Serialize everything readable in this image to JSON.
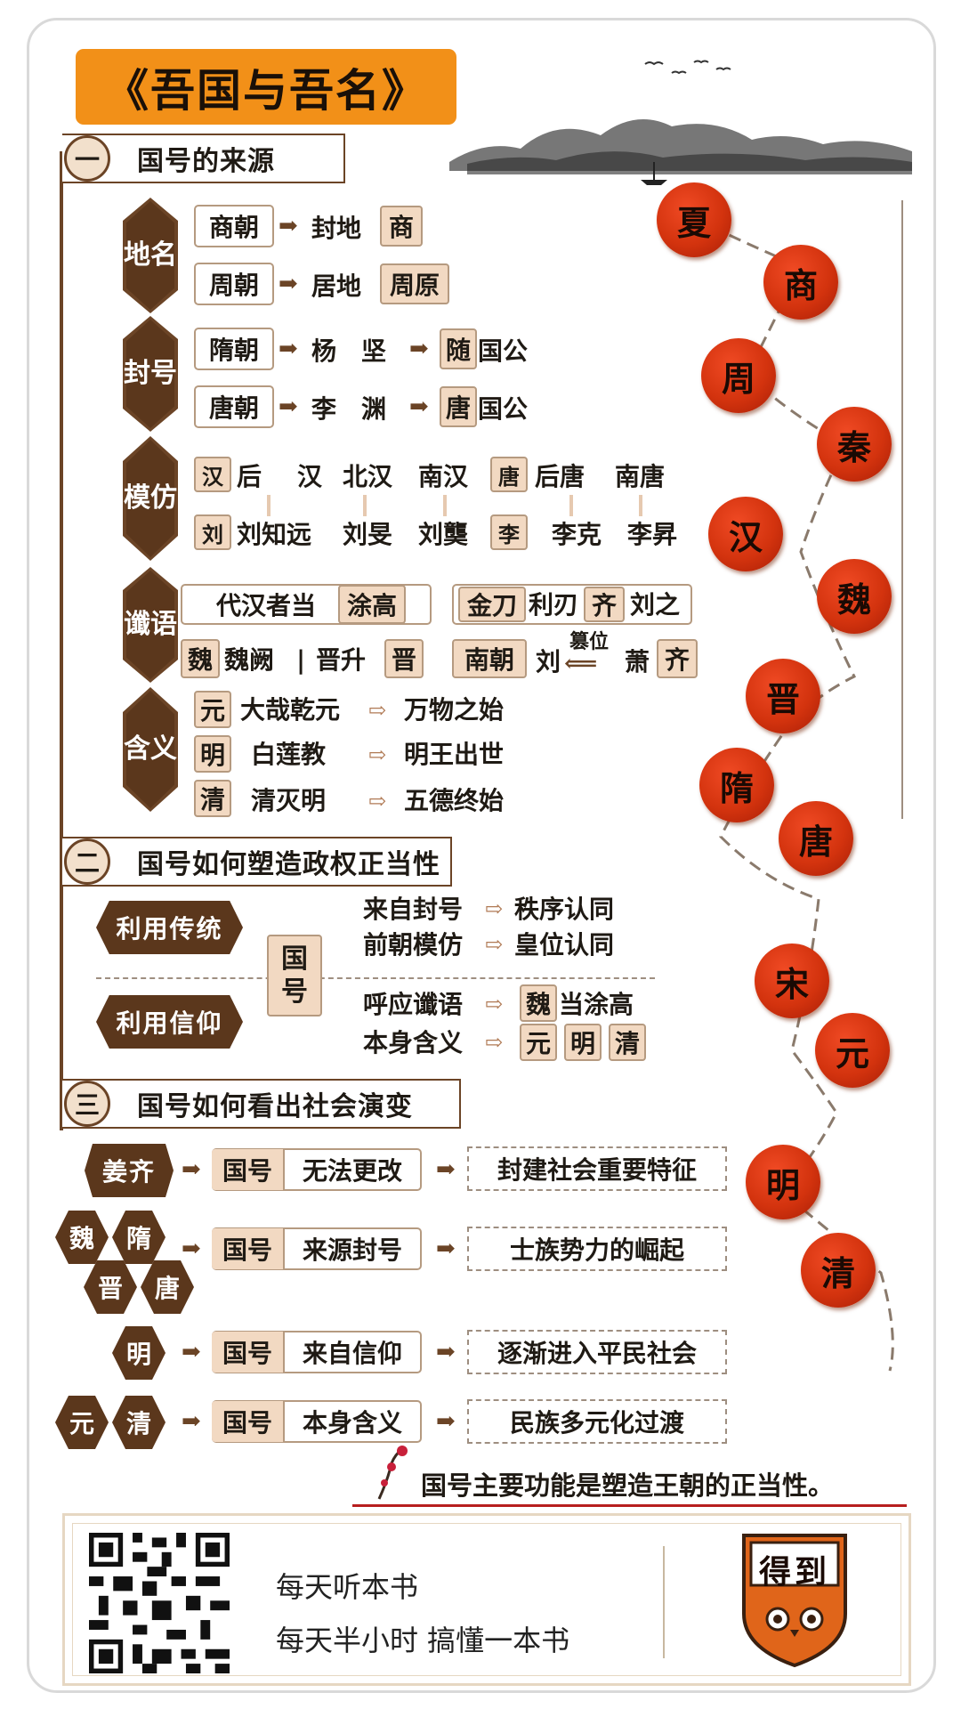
{
  "title": "《吾国与吾名》",
  "sections": [
    {
      "num": "一",
      "title": "国号的来源"
    },
    {
      "num": "二",
      "title": "国号如何塑造政权正当性"
    },
    {
      "num": "三",
      "title": "国号如何看出社会演变"
    }
  ],
  "s1": {
    "place": {
      "label": "地名",
      "rows": [
        {
          "dynasty": "商朝",
          "mid": "封地",
          "end": "商"
        },
        {
          "dynasty": "周朝",
          "mid": "居地",
          "end": "周原"
        }
      ]
    },
    "fief": {
      "label": "封号",
      "rows": [
        {
          "dynasty": "隋朝",
          "person": "杨　坚",
          "hl": "随",
          "tail": "国公"
        },
        {
          "dynasty": "唐朝",
          "person": "李　渊",
          "hl": "唐",
          "tail": "国公"
        }
      ]
    },
    "imitate": {
      "label": "模仿",
      "top1_box": "汉",
      "top1": [
        "后",
        "汉",
        "北汉",
        "南汉"
      ],
      "bot1_box": "刘",
      "bot1": [
        "刘知远",
        "刘旻",
        "刘龑"
      ],
      "top2_box": "唐",
      "top2": [
        "后唐",
        "南唐"
      ],
      "bot2_box": "李",
      "bot2": [
        "李克",
        "李昇"
      ]
    },
    "prophecy": {
      "label": "谶语",
      "p1_pre": "代汉者当",
      "p1_hl": "涂高",
      "p2_a": "金刀",
      "p2_b": "利刃",
      "p2_hl": "齐",
      "p2_c": "刘之",
      "wei_box": "魏",
      "wei_text": "魏阙",
      "sep": "|",
      "jin_text": "晋升",
      "jin_box": "晋",
      "south_box": "南朝",
      "liu": "刘",
      "usurp": "篡位",
      "xiao": "萧",
      "qi_box": "齐"
    },
    "meaning": {
      "label": "含义",
      "rows": [
        {
          "box": "元",
          "text": "大哉乾元",
          "result": "万物之始"
        },
        {
          "box": "明",
          "text": "白莲教",
          "result": "明王出世"
        },
        {
          "box": "清",
          "text": "清灭明",
          "result": "五德终始"
        }
      ]
    }
  },
  "s2": {
    "tradition": "利用传统",
    "belief": "利用信仰",
    "center": "国号",
    "rows": [
      {
        "left": "来自封号",
        "right": "秩序认同"
      },
      {
        "left": "前朝模仿",
        "right": "皇位认同"
      },
      {
        "left": "呼应谶语",
        "box": "魏",
        "right": "当涂高"
      },
      {
        "left": "本身含义",
        "boxes": [
          "元",
          "明",
          "清"
        ]
      }
    ]
  },
  "s3": {
    "rows": [
      {
        "hex": [
          "姜齐"
        ],
        "label": "国号",
        "desc": "无法更改",
        "result": "封建社会重要特征"
      },
      {
        "hex": [
          "魏",
          "隋",
          "晋",
          "唐"
        ],
        "label": "国号",
        "desc": "来源封号",
        "result": "士族势力的崛起"
      },
      {
        "hex": [
          "明"
        ],
        "label": "国号",
        "desc": "来自信仰",
        "result": "逐渐进入平民社会"
      },
      {
        "hex": [
          "元",
          "清"
        ],
        "label": "国号",
        "desc": "本身含义",
        "result": "民族多元化过渡"
      }
    ]
  },
  "dynasties": [
    "夏",
    "商",
    "周",
    "秦",
    "汉",
    "魏",
    "晋",
    "隋",
    "唐",
    "宋",
    "元",
    "明",
    "清"
  ],
  "conclusion": "国号主要功能是塑造王朝的正当性。",
  "footer": {
    "slogan1": "每天听本书",
    "slogan2": "每天半小时 搞懂一本书",
    "logo_text": "得到"
  },
  "colors": {
    "accent": "#f29018",
    "brown": "#6b4426",
    "dynasty_red": "#d3330e",
    "tan": "#f2d9c2"
  }
}
